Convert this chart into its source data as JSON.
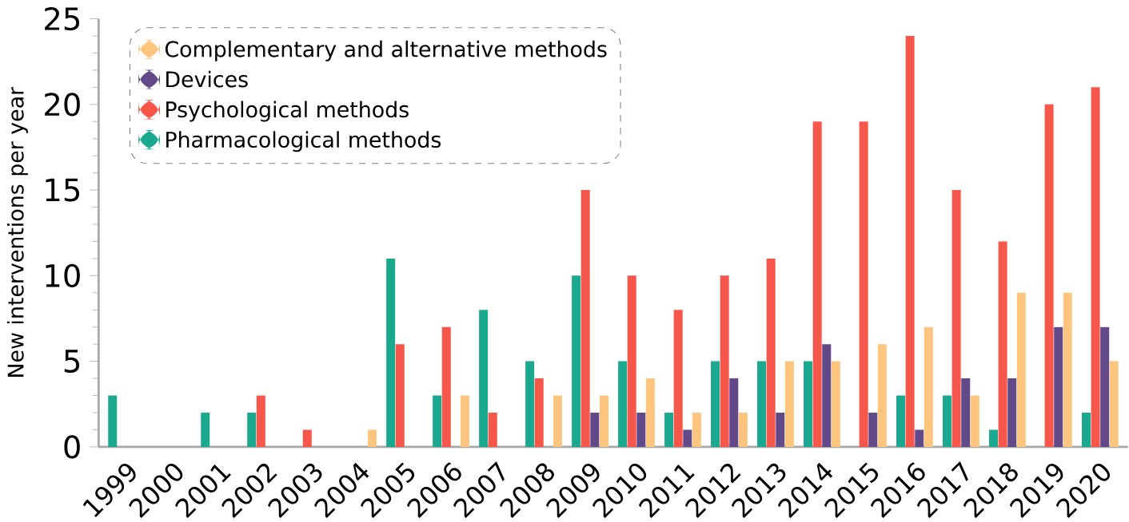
{
  "chart_data": {
    "type": "bar",
    "ylabel": "New interventions per year",
    "categories": [
      "1999",
      "2000",
      "2001",
      "2002",
      "2003",
      "2004",
      "2005",
      "2006",
      "2007",
      "2008",
      "2009",
      "2010",
      "2011",
      "2012",
      "2013",
      "2014",
      "2015",
      "2016",
      "2017",
      "2018",
      "2019",
      "2020"
    ],
    "series": [
      {
        "name": "Pharmacological methods",
        "color": "#1aa88f",
        "values": [
          3,
          0,
          2,
          2,
          0,
          0,
          11,
          3,
          8,
          5,
          10,
          5,
          2,
          5,
          5,
          5,
          0,
          3,
          3,
          1,
          0,
          2
        ]
      },
      {
        "name": "Psychological methods",
        "color": "#f7574a",
        "values": [
          0,
          0,
          0,
          3,
          1,
          0,
          6,
          7,
          2,
          4,
          15,
          10,
          8,
          10,
          11,
          19,
          19,
          24,
          15,
          12,
          20,
          21
        ]
      },
      {
        "name": "Devices",
        "color": "#624a8a",
        "values": [
          0,
          0,
          0,
          0,
          0,
          0,
          0,
          0,
          0,
          0,
          2,
          2,
          1,
          4,
          2,
          6,
          2,
          1,
          4,
          4,
          7,
          7
        ]
      },
      {
        "name": "Complementary and alternative methods",
        "color": "#fdc57e",
        "values": [
          0,
          0,
          0,
          0,
          0,
          1,
          0,
          3,
          0,
          3,
          3,
          4,
          2,
          2,
          5,
          5,
          6,
          7,
          3,
          9,
          9,
          5
        ]
      }
    ],
    "ylim": [
      0,
      25
    ],
    "yticks": [
      0,
      5,
      10,
      15,
      20,
      25
    ],
    "legend": "top left",
    "grid": false
  }
}
